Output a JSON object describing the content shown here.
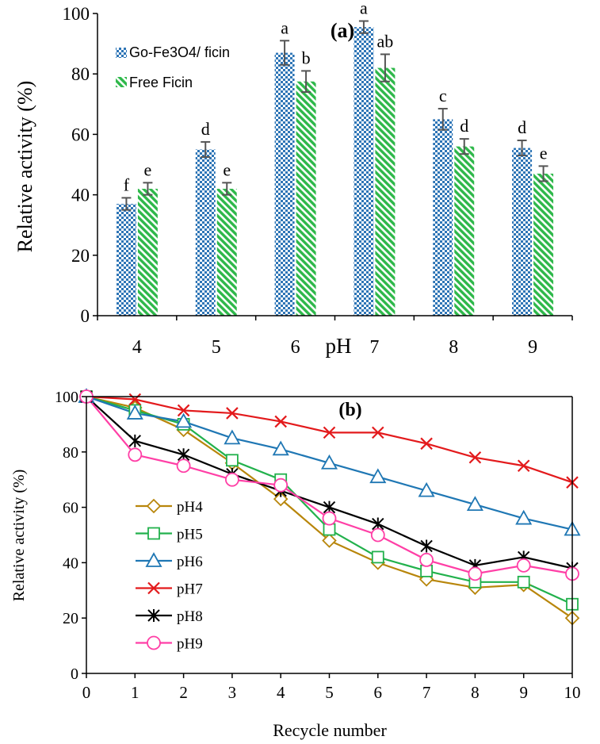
{
  "chart_data": [
    {
      "type": "bar",
      "panel_label": "(a)",
      "xlabel": "pH",
      "ylabel": "Relative activity (%)",
      "categories": [
        "4",
        "5",
        "6",
        "7",
        "8",
        "9"
      ],
      "ylim": [
        0,
        100
      ],
      "yticks": [
        "0",
        "20",
        "40",
        "60",
        "80",
        "100"
      ],
      "legend_position": "top-left",
      "series": [
        {
          "name": "Go-Fe3O4/ ficin",
          "pattern": "checkerboard",
          "color": "#2e75b6",
          "values": [
            37,
            55,
            87,
            95.5,
            65,
            55.5
          ],
          "errors": [
            2,
            2.5,
            4,
            2,
            3.5,
            2.5
          ],
          "letters": [
            "f",
            "d",
            "a",
            "a",
            "c",
            "d"
          ]
        },
        {
          "name": "Free Ficin",
          "pattern": "diagonal-stripes",
          "color": "#2eb84a",
          "values": [
            42,
            42,
            77.5,
            82,
            56,
            47
          ],
          "errors": [
            2,
            2,
            3.5,
            4.5,
            2.5,
            2.5
          ],
          "letters": [
            "e",
            "e",
            "b",
            "ab",
            "d",
            "e"
          ]
        }
      ]
    },
    {
      "type": "line",
      "panel_label": "(b)",
      "xlabel": "Recycle number",
      "ylabel": "Relative activity (%)",
      "x": [
        0,
        1,
        2,
        3,
        4,
        5,
        6,
        7,
        8,
        9,
        10
      ],
      "xticks": [
        "0",
        "1",
        "2",
        "3",
        "4",
        "5",
        "6",
        "7",
        "8",
        "9",
        "10"
      ],
      "ylim": [
        0,
        100
      ],
      "yticks": [
        "0",
        "20",
        "40",
        "60",
        "80",
        "100"
      ],
      "legend_position": "bottom-left",
      "series": [
        {
          "name": "pH4",
          "marker": "diamond",
          "color": "#b8860b",
          "values": [
            100,
            96,
            88,
            76,
            63,
            48,
            40,
            34,
            31,
            32,
            20
          ]
        },
        {
          "name": "pH5",
          "marker": "square",
          "color": "#22b14c",
          "values": [
            100,
            95,
            90,
            77,
            70,
            52,
            42,
            37,
            33,
            33,
            25
          ]
        },
        {
          "name": "pH6",
          "marker": "triangle",
          "color": "#1f77b4",
          "values": [
            100,
            94,
            91,
            85,
            81,
            76,
            71,
            66,
            61,
            56,
            52
          ]
        },
        {
          "name": "pH7",
          "marker": "x",
          "color": "#e31a1c",
          "values": [
            100,
            99,
            95,
            94,
            91,
            87,
            87,
            83,
            78,
            75,
            69
          ]
        },
        {
          "name": "pH8",
          "marker": "asterisk",
          "color": "#000000",
          "values": [
            100,
            84,
            79,
            72,
            66,
            60,
            54,
            46,
            39,
            42,
            38
          ]
        },
        {
          "name": "pH9",
          "marker": "circle",
          "color": "#ff3fa6",
          "values": [
            100,
            79,
            75,
            70,
            68,
            56,
            50,
            41,
            36,
            39,
            36
          ]
        }
      ]
    }
  ]
}
